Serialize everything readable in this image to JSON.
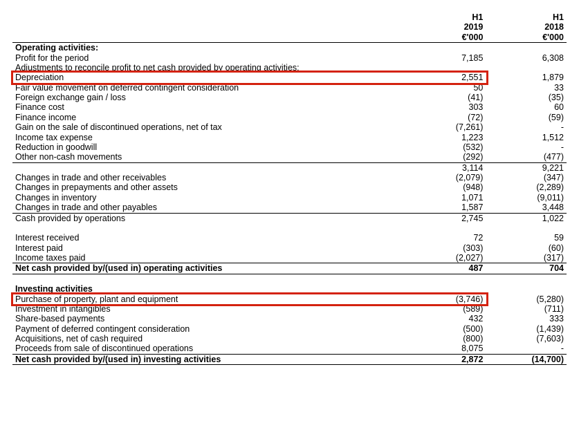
{
  "columns": {
    "period1": {
      "name": "H1",
      "year": "2019",
      "unit": "€'000"
    },
    "period2": {
      "name": "H1",
      "year": "2018",
      "unit": "€'000"
    }
  },
  "sections": {
    "operating_header": "Operating activities:",
    "investing_header": "Investing activities"
  },
  "rows": {
    "profit": {
      "label": "Profit for the period",
      "v1": "7,185",
      "v2": "6,308"
    },
    "adjustments": {
      "label": "Adjustments to reconcile profit to net cash provided by operating activities:"
    },
    "depreciation": {
      "label": "Depreciation",
      "v1": "2,551",
      "v2": "1,879"
    },
    "fvmove": {
      "label": "Fair value movement on deferred contingent consideration",
      "v1": "50",
      "v2": "33"
    },
    "fx": {
      "label": "Foreign exchange gain / loss",
      "v1": "(41)",
      "v2": "(35)"
    },
    "fincost": {
      "label": "Finance cost",
      "v1": "303",
      "v2": "60"
    },
    "finincome": {
      "label": "Finance income",
      "v1": "(72)",
      "v2": "(59)"
    },
    "gaindisc": {
      "label": "Gain on the sale of discontinued operations, net of tax",
      "v1": "(7,261)",
      "v2": "-"
    },
    "incometax": {
      "label": "Income tax expense",
      "v1": "1,223",
      "v2": "1,512"
    },
    "goodwill": {
      "label": "Reduction in goodwill",
      "v1": "(532)",
      "v2": "-"
    },
    "noncash": {
      "label": "Other non-cash movements",
      "v1": "(292)",
      "v2": "(477)"
    },
    "subtotal1": {
      "label": "",
      "v1": "3,114",
      "v2": "9,221"
    },
    "chrecv": {
      "label": "Changes in trade and other receivables",
      "v1": "(2,079)",
      "v2": "(347)"
    },
    "chprep": {
      "label": "Changes in prepayments and other assets",
      "v1": "(948)",
      "v2": "(2,289)"
    },
    "chinv": {
      "label": "Changes in inventory",
      "v1": "1,071",
      "v2": "(9,011)"
    },
    "chpay": {
      "label": "Changes in trade and other payables",
      "v1": "1,587",
      "v2": "3,448"
    },
    "cashops": {
      "label": "Cash provided by operations",
      "v1": "2,745",
      "v2": "1,022"
    },
    "intrec": {
      "label": "Interest received",
      "v1": "72",
      "v2": "59"
    },
    "intpaid": {
      "label": "Interest paid",
      "v1": "(303)",
      "v2": "(60)"
    },
    "taxpaid": {
      "label": "Income taxes paid",
      "v1": "(2,027)",
      "v2": "(317)"
    },
    "netops": {
      "label": "Net cash provided by/(used in) operating activities",
      "v1": "487",
      "v2": "704"
    },
    "ppe": {
      "label": "Purchase of property, plant and equipment",
      "v1": "(3,746)",
      "v2": "(5,280)"
    },
    "intang": {
      "label": "Investment in intangibles",
      "v1": "(589)",
      "v2": "(711)"
    },
    "sbp": {
      "label": "Share-based payments",
      "v1": "432",
      "v2": "333"
    },
    "defcon": {
      "label": "Payment of deferred contingent consideration",
      "v1": "(500)",
      "v2": "(1,439)"
    },
    "acq": {
      "label": "Acquisitions, net of cash required",
      "v1": "(800)",
      "v2": "(7,603)"
    },
    "procdisc": {
      "label": "Proceeds from sale of discontinued operations",
      "v1": "8,075",
      "v2": "-"
    },
    "netinv": {
      "label": "Net cash provided by/(used in) investing activities",
      "v1": "2,872",
      "v2": "(14,700)"
    }
  },
  "style": {
    "highlight_color": "#d4220f",
    "text_color": "#000000",
    "background": "#ffffff",
    "font_size_pt": 9.5,
    "border_color": "#000000"
  }
}
